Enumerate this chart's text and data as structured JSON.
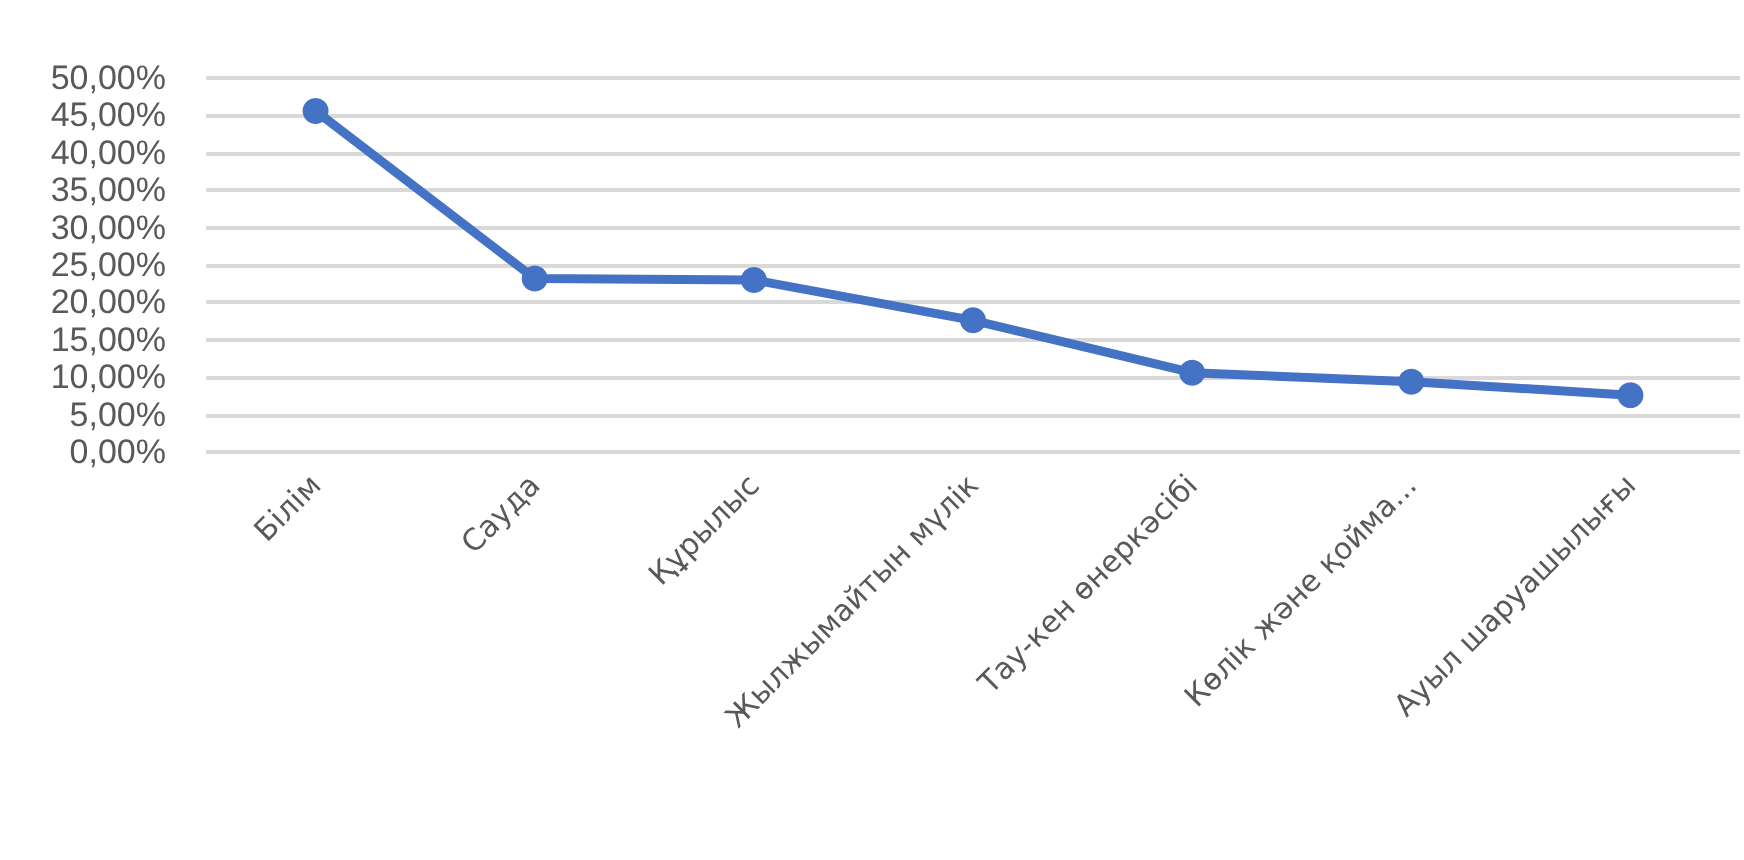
{
  "chart_data": {
    "type": "line",
    "categories": [
      "Білім",
      "Сауда",
      "Құрылыс",
      "Жылжымайтын мүлік",
      "Тау-кен өнеркәсібі",
      "Көлік және қойма...",
      "Ауыл шаруашылығы"
    ],
    "series": [
      {
        "color": "#4472c4",
        "values": [
          45.6,
          23.2,
          23.0,
          17.6,
          10.6,
          9.4,
          7.6
        ]
      }
    ],
    "ylim": [
      0,
      50
    ],
    "yticks": [
      {
        "value": 0,
        "label": "0,00%"
      },
      {
        "value": 5,
        "label": "5,00%"
      },
      {
        "value": 10,
        "label": "10,00%"
      },
      {
        "value": 15,
        "label": "15,00%"
      },
      {
        "value": 20,
        "label": "20,00%"
      },
      {
        "value": 25,
        "label": "25,00%"
      },
      {
        "value": 30,
        "label": "30,00%"
      },
      {
        "value": 35,
        "label": "35,00%"
      },
      {
        "value": 40,
        "label": "40,00%"
      },
      {
        "value": 45,
        "label": "45,00%"
      },
      {
        "value": 50,
        "label": "50,00%"
      }
    ],
    "grid": "y",
    "marker": "circle",
    "line_style": "solid"
  }
}
